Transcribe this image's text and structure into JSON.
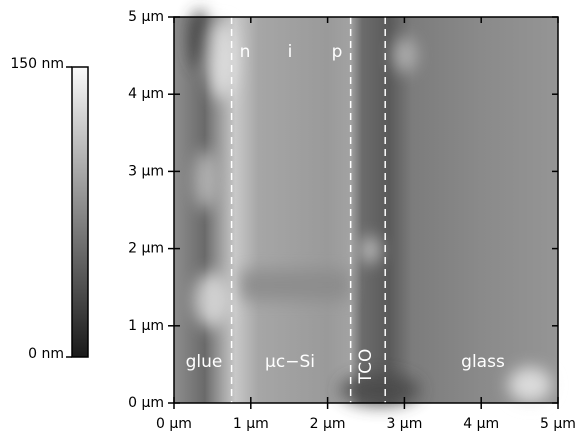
{
  "chart_data": {
    "type": "image",
    "xlim": [
      0,
      5
    ],
    "ylim": [
      0,
      5
    ],
    "xticks": [
      {
        "value": 0,
        "label": "0 μm"
      },
      {
        "value": 1,
        "label": "1 μm"
      },
      {
        "value": 2,
        "label": "2 μm"
      },
      {
        "value": 3,
        "label": "3 μm"
      },
      {
        "value": 4,
        "label": "4 μm"
      },
      {
        "value": 5,
        "label": "5 μm"
      }
    ],
    "yticks": [
      {
        "value": 0,
        "label": "0 μm"
      },
      {
        "value": 1,
        "label": "1 μm"
      },
      {
        "value": 2,
        "label": "2 μm"
      },
      {
        "value": 3,
        "label": "3 μm"
      },
      {
        "value": 4,
        "label": "4 μm"
      },
      {
        "value": 5,
        "label": "5 μm"
      }
    ],
    "clim": [
      0,
      150
    ],
    "cticks": [
      {
        "value": 0,
        "label": "0 nm"
      },
      {
        "value": 150,
        "label": "150 nm"
      }
    ],
    "boundaries": [
      0.75,
      2.3,
      2.75
    ],
    "annotations": [
      "n",
      "i",
      "p",
      "glue",
      "μc−Si",
      "TCO",
      "glass"
    ]
  }
}
